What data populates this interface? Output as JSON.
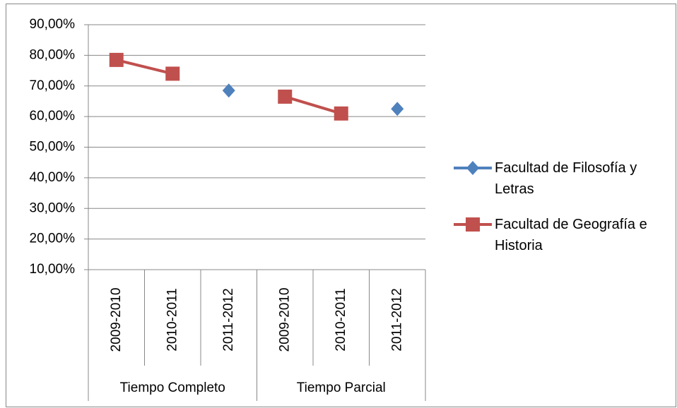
{
  "chart_data": {
    "type": "line",
    "categories": [
      "2009-2010",
      "2010-2011",
      "2011-2012",
      "2009-2010",
      "2010-2011",
      "2011-2012"
    ],
    "groups": [
      "Tiempo Completo",
      "Tiempo Parcial"
    ],
    "series": [
      {
        "name": "Facultad de Filosofía y Letras",
        "color": "#4f81bd",
        "marker": "diamond",
        "values": [
          null,
          null,
          68.5,
          null,
          null,
          62.5
        ]
      },
      {
        "name": "Facultad de Geografía e Historia",
        "color": "#c0504d",
        "marker": "square",
        "values": [
          78.5,
          74,
          null,
          66.5,
          61,
          null
        ]
      }
    ],
    "ylim": [
      10,
      90
    ],
    "yticks": [
      {
        "value": 10,
        "label": "10,00%"
      },
      {
        "value": 20,
        "label": "20,00%"
      },
      {
        "value": 30,
        "label": "30,00%"
      },
      {
        "value": 40,
        "label": "40,00%"
      },
      {
        "value": 50,
        "label": "50,00%"
      },
      {
        "value": 60,
        "label": "60,00%"
      },
      {
        "value": 70,
        "label": "70,00%"
      },
      {
        "value": 80,
        "label": "80,00%"
      },
      {
        "value": 90,
        "label": "90,00%"
      }
    ],
    "grid": true,
    "legend": "right"
  }
}
